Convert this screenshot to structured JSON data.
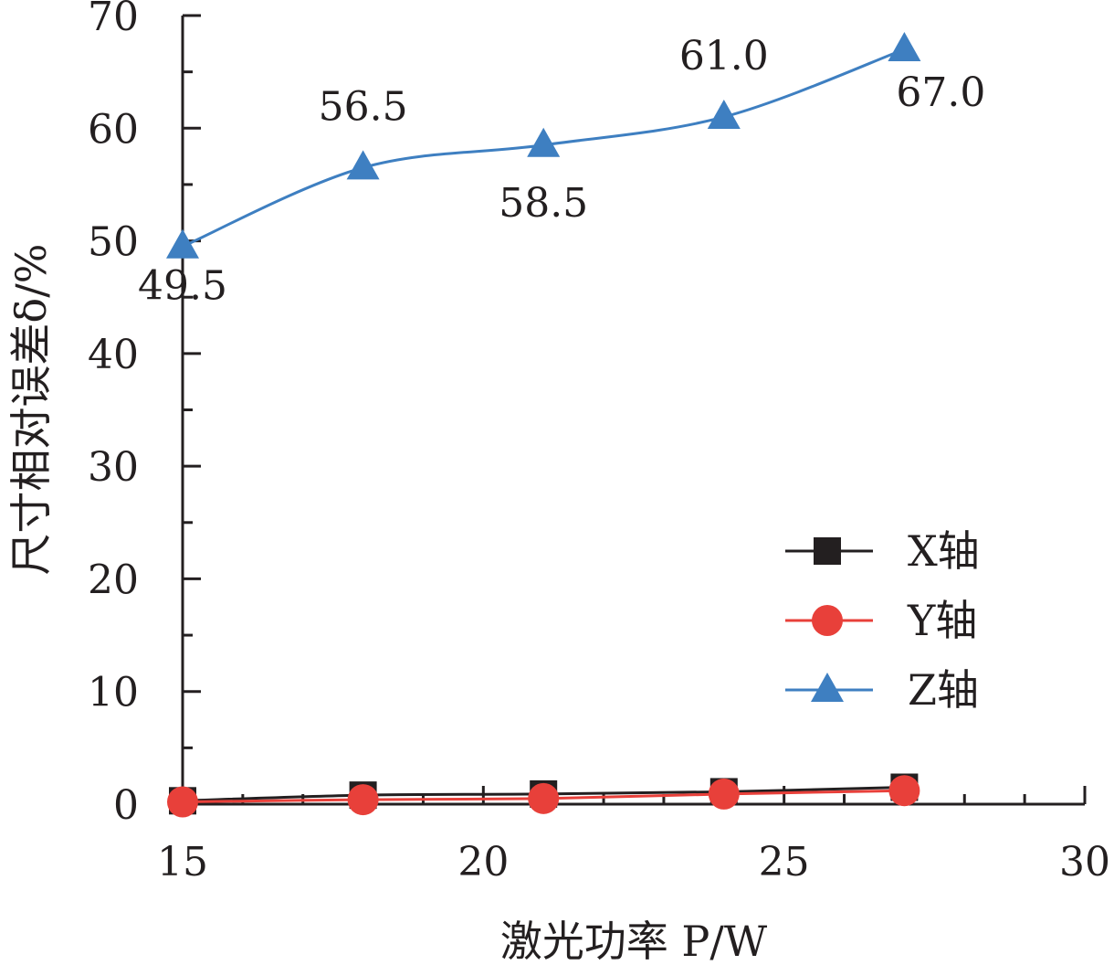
{
  "chart_data": {
    "type": "line",
    "x": [
      15,
      18,
      21,
      24,
      27
    ],
    "xlim": [
      15,
      30
    ],
    "ylim": [
      0,
      70
    ],
    "xticks": [
      "15",
      "20",
      "25",
      "30"
    ],
    "yticks": [
      "0",
      "10",
      "20",
      "30",
      "40",
      "50",
      "60",
      "70"
    ],
    "xlabel": "激光功率 P/W",
    "ylabel": "尺寸相对误差δ/%",
    "legend_position": "right-middle",
    "series": [
      {
        "name": "X轴",
        "marker": "square",
        "color": "#231f20",
        "values": [
          0.3,
          0.8,
          0.9,
          1.1,
          1.5
        ]
      },
      {
        "name": "Y轴",
        "marker": "circle",
        "color": "#e8403a",
        "values": [
          0.2,
          0.4,
          0.5,
          0.9,
          1.2
        ]
      },
      {
        "name": "Z轴",
        "marker": "triangle",
        "color": "#3e7fc1",
        "values": [
          49.5,
          56.5,
          58.5,
          61.0,
          67.0
        ]
      }
    ],
    "data_labels": [
      "49.5",
      "56.5",
      "58.5",
      "61.0",
      "67.0"
    ]
  }
}
